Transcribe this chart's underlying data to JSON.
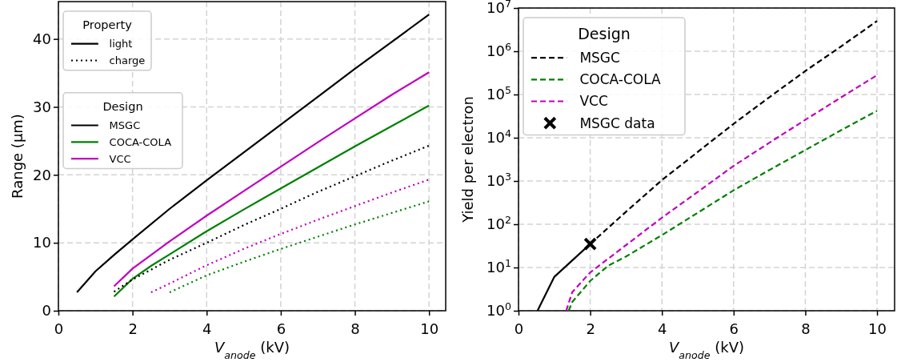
{
  "chart_data": [
    {
      "type": "line",
      "xlabel": "V$_{anode}$ (kV)",
      "ylabel": "Range (μm)",
      "xlim": [
        0,
        10.45
      ],
      "ylim": [
        0,
        45.5
      ],
      "xticks": [
        0,
        2,
        4,
        6,
        8,
        10
      ],
      "yticks": [
        0,
        10,
        20,
        30,
        40
      ],
      "grid": true,
      "legend": "top left",
      "legend_title": "Design",
      "annotations": [
        "Property",
        "light",
        "charge"
      ],
      "series": [
        {
          "name": "MSGC",
          "color": "#000000",
          "line_style": "solid",
          "x": [
            0.5,
            1,
            1.5,
            2,
            3,
            4,
            5,
            6,
            7,
            8,
            9,
            10
          ],
          "values": [
            2.7,
            5.8,
            8.2,
            10.5,
            15,
            19.2,
            23.3,
            27.4,
            31.5,
            35.6,
            39.6,
            43.6
          ]
        },
        {
          "name": "COCA-COLA",
          "color": "#008000",
          "line_style": "solid",
          "x": [
            1.5,
            2,
            2.5,
            3,
            4,
            5,
            6,
            7,
            8,
            9,
            10
          ],
          "values": [
            2.1,
            4.7,
            6.6,
            8.3,
            11.7,
            14.9,
            18,
            21.1,
            24.2,
            27.2,
            30.2
          ]
        },
        {
          "name": "VCC",
          "color": "#bf00bf",
          "line_style": "solid",
          "x": [
            1.5,
            2,
            3,
            4,
            5,
            6,
            7,
            8,
            9,
            10
          ],
          "values": [
            3.6,
            6.2,
            10.2,
            14,
            17.6,
            21.2,
            24.8,
            28.3,
            31.8,
            35.1
          ]
        },
        {
          "color": "#000000",
          "line_style": "dotted",
          "x": [
            1.5,
            2,
            3,
            4,
            5,
            6,
            7,
            8,
            9,
            10
          ],
          "values": [
            2.8,
            4.6,
            7.5,
            10,
            12.6,
            15,
            17.5,
            19.8,
            22.1,
            24.3
          ]
        },
        {
          "color": "#008000",
          "line_style": "dotted",
          "x": [
            3,
            4,
            5,
            6,
            7,
            8,
            9,
            10
          ],
          "values": [
            2.7,
            5.2,
            7.2,
            9.1,
            10.9,
            12.7,
            14.4,
            16.1
          ]
        },
        {
          "color": "#bf00bf",
          "line_style": "dotted",
          "x": [
            2.5,
            3,
            4,
            5,
            6,
            7,
            8,
            9,
            10
          ],
          "values": [
            2.7,
            4,
            6.7,
            9.1,
            11.3,
            13.4,
            15.4,
            17.4,
            19.3
          ]
        }
      ]
    },
    {
      "type": "line",
      "xlabel": "V$_{anode}$ (kV)",
      "ylabel": "Yield per electron",
      "log": "y",
      "xlim": [
        0,
        10.49
      ],
      "ylim": [
        1,
        10000000
      ],
      "xticks": [
        0,
        2,
        4,
        6,
        8,
        10
      ],
      "yticks": [
        {
          "value": 1,
          "label": "10$^{0}$"
        },
        {
          "value": 10,
          "label": "10$^{1}$"
        },
        {
          "value": 100,
          "label": "10$^{2}$"
        },
        {
          "value": 1000,
          "label": "10$^{3}$"
        },
        {
          "value": 10000,
          "label": "10$^{4}$"
        },
        {
          "value": 100000,
          "label": "10$^{5}$"
        },
        {
          "value": 1000000,
          "label": "10$^{6}$"
        },
        {
          "value": 10000000,
          "label": "10$^{7}$"
        }
      ],
      "grid": true,
      "legend": "top left",
      "legend_title": "Design",
      "series": [
        {
          "name": "MSGC",
          "color": "#000000",
          "line_style": "dashed",
          "x": [
            2,
            3,
            4,
            5,
            6,
            7,
            8,
            9,
            10
          ],
          "values": [
            35,
            195,
            1050,
            4700,
            21000,
            87000,
            350000,
            1300000,
            5000000
          ]
        },
        {
          "name": "COCA-COLA",
          "color": "#008000",
          "line_style": "dashed",
          "x": [
            1.4,
            1.5,
            2,
            2.5,
            3,
            4,
            5,
            6,
            7,
            8,
            9,
            10
          ],
          "values": [
            1,
            1.6,
            4.9,
            11,
            18,
            56,
            185,
            610,
            1800,
            5200,
            15000,
            42000
          ]
        },
        {
          "name": "VCC",
          "color": "#bf00bf",
          "line_style": "dashed",
          "x": [
            1.33,
            1.5,
            2,
            3,
            4,
            5,
            6,
            7,
            8,
            9,
            10
          ],
          "values": [
            1,
            2.7,
            7.7,
            33,
            142,
            560,
            2240,
            7700,
            26000,
            86000,
            280000
          ]
        },
        {
          "color": "#000000",
          "line_style": "solid",
          "x": [
            0.53,
            1,
            2
          ],
          "values": [
            1,
            6.1,
            35
          ]
        },
        {
          "name": "MSGC data",
          "type": "scatter",
          "marker": "cross",
          "color": "#000000",
          "x": [
            2
          ],
          "values": [
            35
          ]
        }
      ]
    }
  ]
}
